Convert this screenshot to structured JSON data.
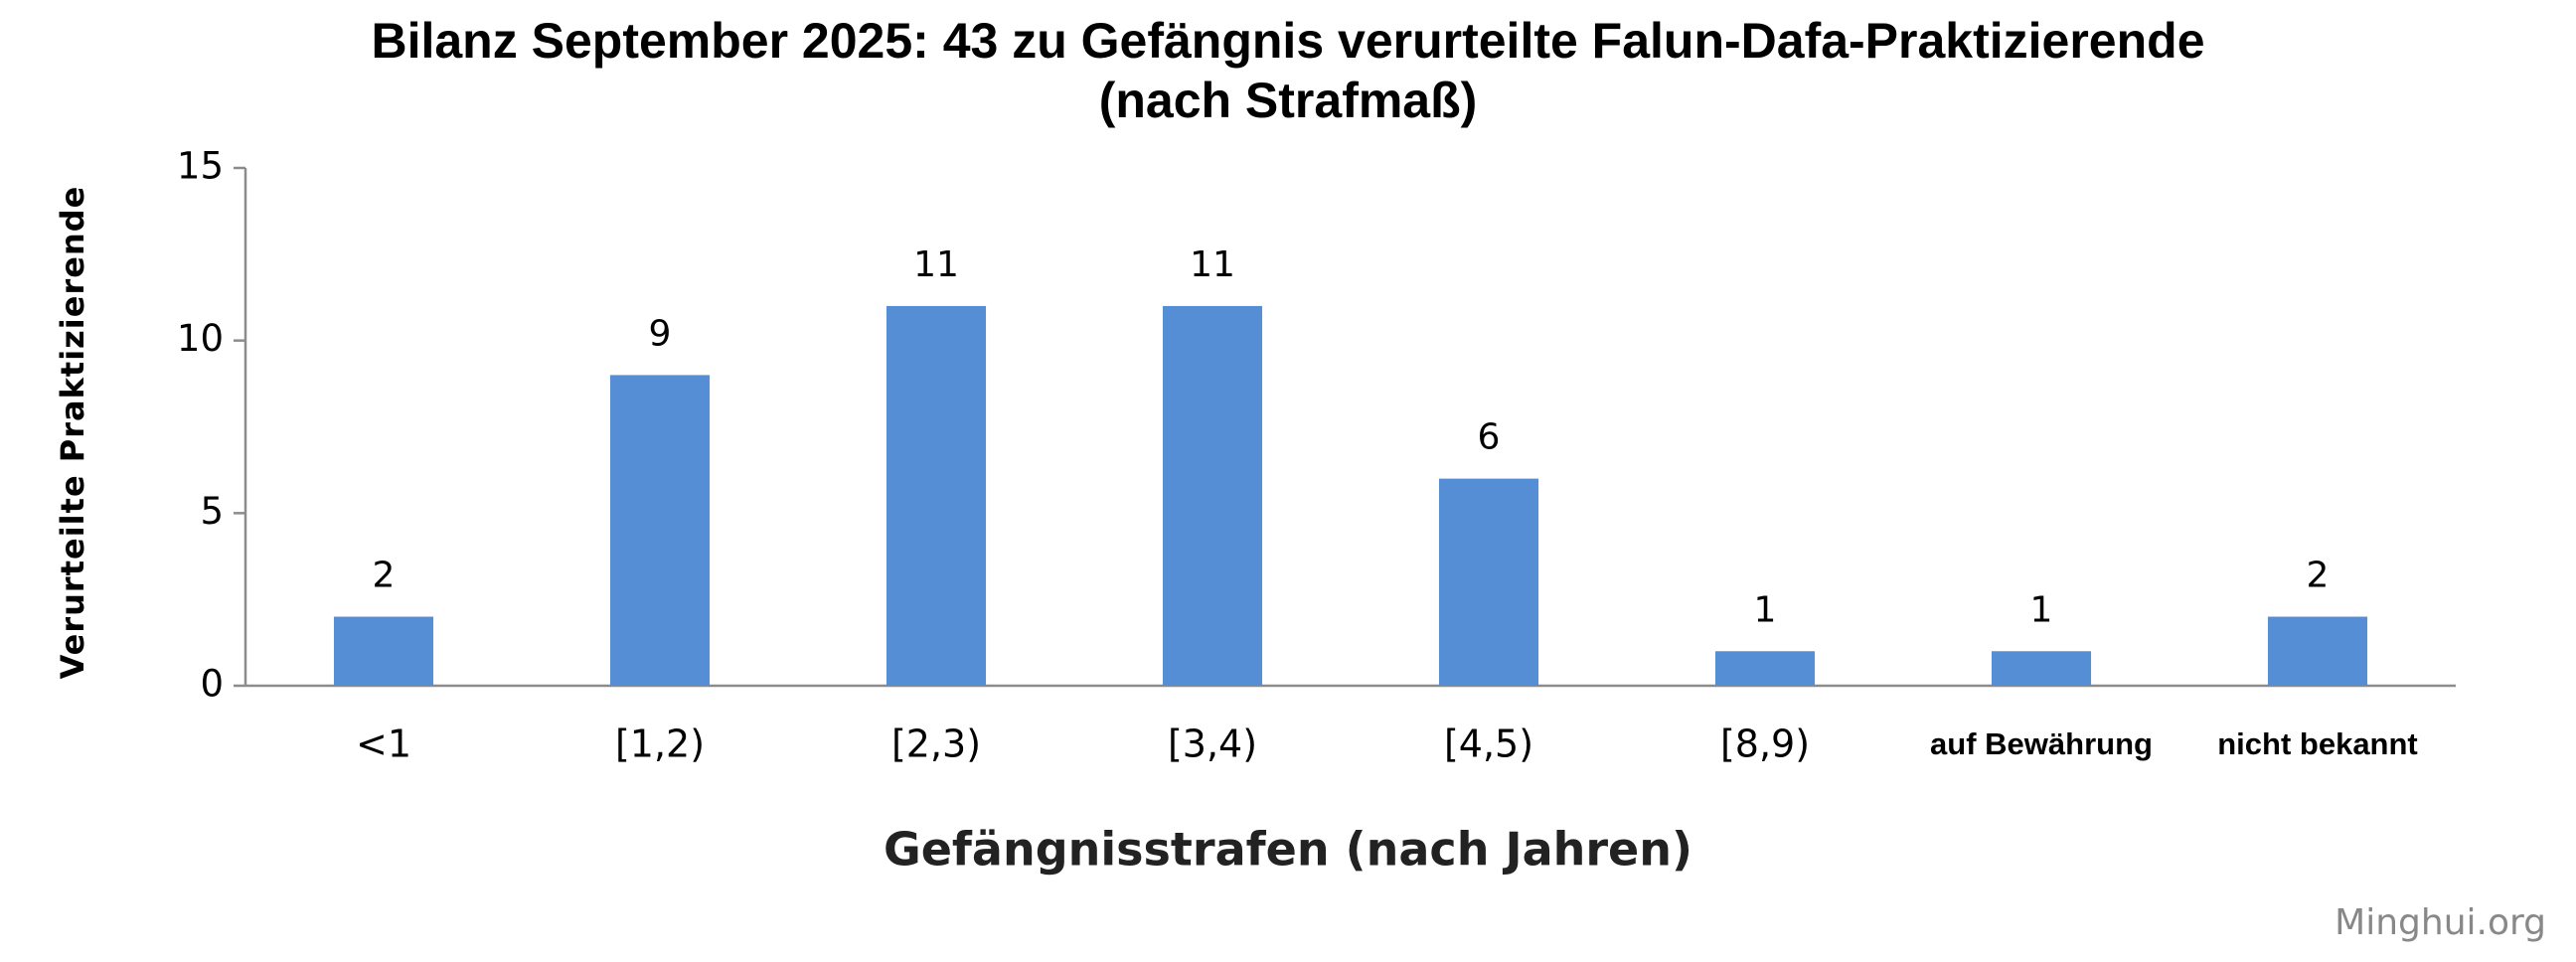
{
  "chart_data": {
    "type": "bar",
    "title": [
      "Bilanz September 2025: 43 zu Gefängnis verurteilte Falun-Dafa-Praktizierende",
      "(nach Strafmaß)"
    ],
    "x_label": "Gefängnisstrafen (nach Jahren)",
    "y_label": "Verurteilte Praktizierende",
    "categories": [
      "<1",
      "[1,2)",
      "[2,3)",
      "[3,4)",
      "[4,5)",
      "[8,9)",
      "auf Bewährung",
      "nicht bekannt"
    ],
    "values": [
      2,
      9,
      11,
      11,
      6,
      1,
      1,
      2
    ],
    "color": "#558ed5",
    "ylim": [
      0,
      15
    ],
    "yticks": [
      0,
      5,
      10,
      15
    ],
    "grid": false,
    "watermark": "Minghui.org"
  }
}
